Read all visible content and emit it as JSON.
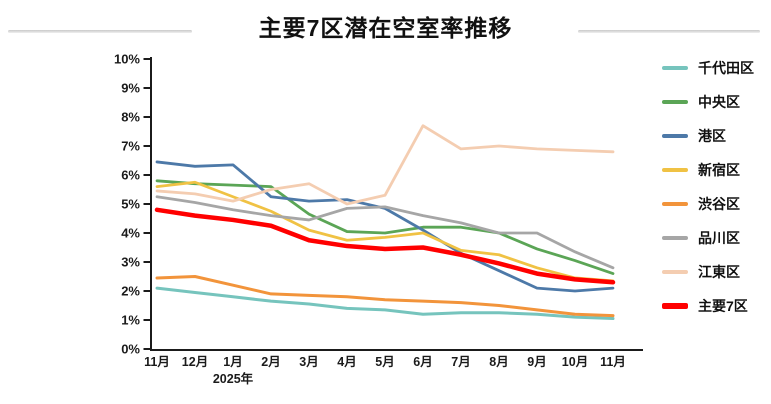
{
  "title": "主要7区潜在空室率推移",
  "chart_data": {
    "type": "line",
    "title": "主要7区潜在空室率推移",
    "x_axis": {
      "categories": [
        "11月",
        "12月",
        "1月",
        "2月",
        "3月",
        "4月",
        "5月",
        "6月",
        "7月",
        "8月",
        "9月",
        "10月",
        "11月"
      ],
      "year_label": "2025年",
      "year_label_under_index": 2
    },
    "y_axis": {
      "min": 0,
      "max": 10,
      "step": 1,
      "tick_suffix": "%"
    },
    "grid": false,
    "legend_position": "right",
    "series": [
      {
        "name": "千代田区",
        "color": "#76C4BD",
        "line_width": 3,
        "values": [
          2.1,
          1.95,
          1.8,
          1.65,
          1.55,
          1.4,
          1.35,
          1.2,
          1.25,
          1.25,
          1.2,
          1.1,
          1.05
        ]
      },
      {
        "name": "中央区",
        "color": "#5BA556",
        "line_width": 2.8,
        "values": [
          5.8,
          5.7,
          5.65,
          5.6,
          4.65,
          4.05,
          4.0,
          4.2,
          4.2,
          4.0,
          3.45,
          3.05,
          2.6
        ]
      },
      {
        "name": "港区",
        "color": "#4D79A8",
        "line_width": 2.8,
        "values": [
          6.45,
          6.3,
          6.35,
          5.25,
          5.1,
          5.15,
          4.85,
          4.1,
          3.3,
          2.7,
          2.1,
          2.0,
          2.1
        ]
      },
      {
        "name": "新宿区",
        "color": "#F0C244",
        "line_width": 2.8,
        "values": [
          5.6,
          5.75,
          5.25,
          4.75,
          4.1,
          3.75,
          3.85,
          4.0,
          3.4,
          3.25,
          2.8,
          2.45,
          2.35
        ]
      },
      {
        "name": "渋谷区",
        "color": "#F2943B",
        "line_width": 3,
        "values": [
          2.45,
          2.5,
          2.2,
          1.9,
          1.85,
          1.8,
          1.7,
          1.65,
          1.6,
          1.5,
          1.35,
          1.2,
          1.15
        ]
      },
      {
        "name": "品川区",
        "color": "#A6A6A6",
        "line_width": 2.8,
        "values": [
          5.25,
          5.05,
          4.8,
          4.6,
          4.45,
          4.85,
          4.9,
          4.6,
          4.35,
          4.0,
          4.0,
          3.35,
          2.8
        ]
      },
      {
        "name": "江東区",
        "color": "#F4CDB1",
        "line_width": 2.8,
        "values": [
          5.45,
          5.35,
          5.1,
          5.5,
          5.7,
          5.0,
          5.3,
          7.7,
          6.9,
          7.0,
          6.9,
          6.85,
          6.8
        ]
      },
      {
        "name": "主要7区",
        "color": "#FF0000",
        "line_width": 4.5,
        "values": [
          4.8,
          4.6,
          4.45,
          4.25,
          3.75,
          3.55,
          3.45,
          3.5,
          3.25,
          2.95,
          2.6,
          2.4,
          2.3
        ]
      }
    ]
  },
  "colors": {
    "axis": "#1b1b1b",
    "tick_label": "#1b1b1b",
    "title": "#111111",
    "title_rule": "#d9d9d9",
    "background": "#ffffff"
  }
}
